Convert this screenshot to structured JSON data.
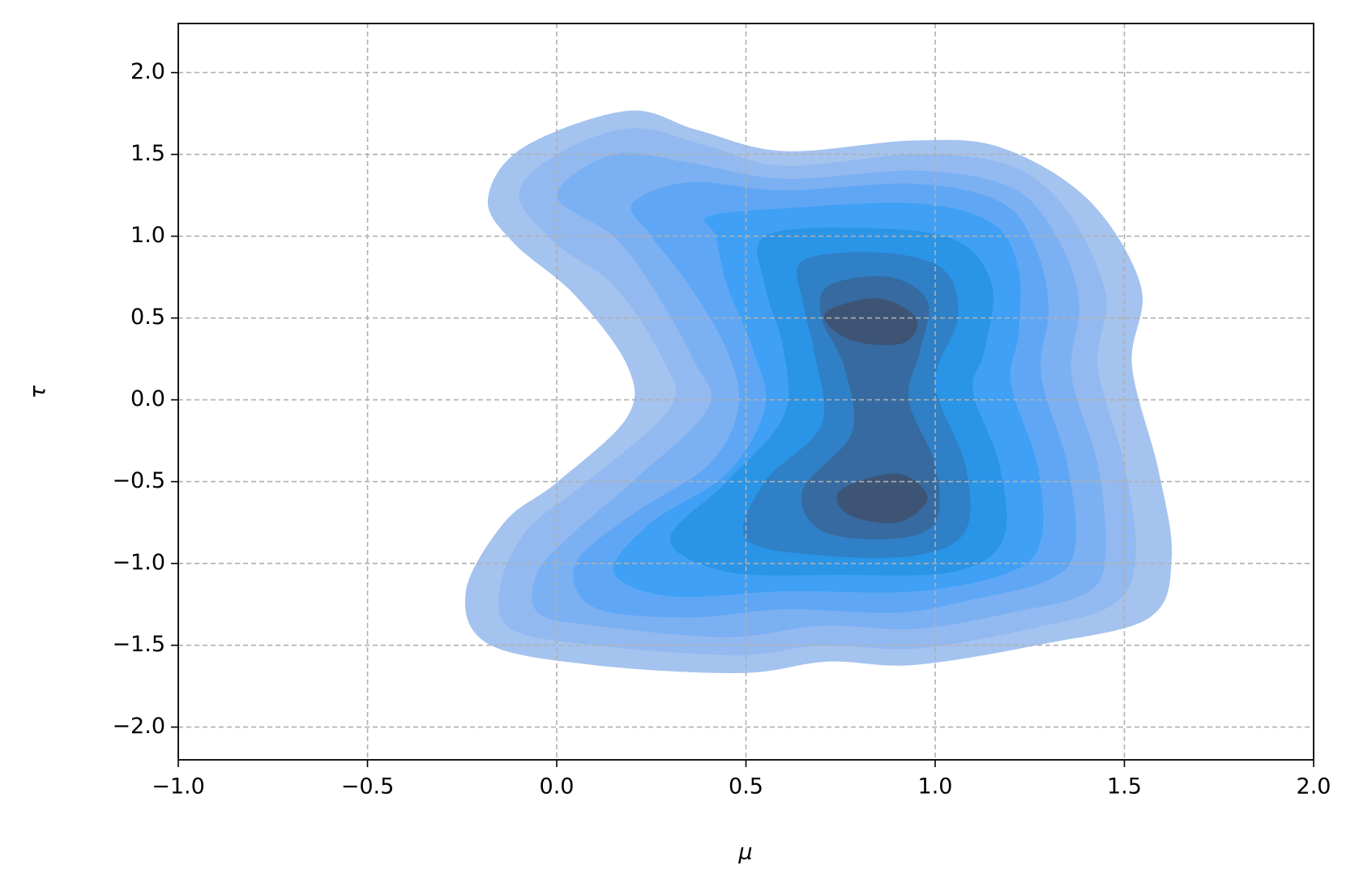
{
  "chart_data": {
    "type": "kde",
    "xlabel": "μ",
    "ylabel": "τ",
    "xlim": [
      -1,
      2
    ],
    "ylim": [
      -2.2,
      2.3
    ],
    "xticks": [
      {
        "value": -1,
        "label": "−1.0"
      },
      {
        "value": -0.5,
        "label": "−0.5"
      },
      {
        "value": 0,
        "label": "0.0"
      },
      {
        "value": 0.5,
        "label": "0.5"
      },
      {
        "value": 1,
        "label": "1.0"
      },
      {
        "value": 1.5,
        "label": "1.5"
      },
      {
        "value": 2,
        "label": "2.0"
      }
    ],
    "yticks": [
      {
        "value": -2,
        "label": "−2.0"
      },
      {
        "value": -1.5,
        "label": "−1.5"
      },
      {
        "value": -1,
        "label": "−1.0"
      },
      {
        "value": -0.5,
        "label": "−0.5"
      },
      {
        "value": 0,
        "label": "0.0"
      },
      {
        "value": 0.5,
        "label": "0.5"
      },
      {
        "value": 1,
        "label": "1.0"
      },
      {
        "value": 1.5,
        "label": "1.5"
      },
      {
        "value": 2,
        "label": "2.0"
      }
    ],
    "grid": true,
    "levels": [
      {
        "color": "#a4c3ef",
        "polygons": [
          {
            "x": [
              -0.182,
              -0.09,
              0.186,
              0.37,
              0.6,
              0.946,
              1.176,
              1.406,
              1.544,
              1.52,
              1.59,
              1.625,
              1.567,
              1.29,
              0.946,
              0.715,
              0.485,
              0.094,
              -0.182,
              -0.24,
              -0.137,
              0.0,
              0.186,
              0.186,
              0.048,
              -0.113
            ],
            "y": [
              1.223,
              1.54,
              1.766,
              1.65,
              1.52,
              1.585,
              1.54,
              1.22,
              0.69,
              0.21,
              -0.43,
              -0.96,
              -1.33,
              -1.49,
              -1.62,
              -1.6,
              -1.67,
              -1.62,
              -1.49,
              -1.17,
              -0.745,
              -0.505,
              -0.106,
              0.21,
              0.64,
              0.957
            ]
          }
        ]
      },
      {
        "color": "#92b9f0",
        "polygons": [
          {
            "x": [
              -0.1,
              0.0,
              0.2,
              0.4,
              0.6,
              0.95,
              1.2,
              1.35,
              1.45,
              1.43,
              1.5,
              1.53,
              1.47,
              1.25,
              0.95,
              0.7,
              0.48,
              0.1,
              -0.12,
              -0.15,
              -0.08,
              0.08,
              0.3,
              0.28,
              0.15,
              0.0
            ],
            "y": [
              1.25,
              1.5,
              1.66,
              1.55,
              1.43,
              1.5,
              1.43,
              1.15,
              0.65,
              0.2,
              -0.4,
              -0.95,
              -1.25,
              -1.4,
              -1.52,
              -1.5,
              -1.56,
              -1.5,
              -1.4,
              -1.15,
              -0.8,
              -0.5,
              -0.05,
              0.25,
              0.7,
              0.95
            ]
          }
        ]
      },
      {
        "color": "#7bb0f3",
        "polygons": [
          {
            "x": [
              0.0,
              0.15,
              0.35,
              0.6,
              0.95,
              1.2,
              1.32,
              1.38,
              1.36,
              1.43,
              1.45,
              1.4,
              1.2,
              0.95,
              0.7,
              0.45,
              0.1,
              -0.05,
              -0.05,
              0.05,
              0.2,
              0.4,
              0.36,
              0.25,
              0.15
            ],
            "y": [
              1.25,
              1.5,
              1.45,
              1.35,
              1.4,
              1.3,
              1.0,
              0.6,
              0.15,
              -0.4,
              -0.95,
              -1.18,
              -1.3,
              -1.4,
              -1.38,
              -1.45,
              -1.38,
              -1.3,
              -1.05,
              -0.8,
              -0.5,
              -0.05,
              0.25,
              0.7,
              1.0
            ]
          }
        ]
      },
      {
        "color": "#5fa7f5",
        "polygons": [
          {
            "x": [
              0.2,
              0.35,
              0.6,
              0.95,
              1.18,
              1.27,
              1.3,
              1.28,
              1.35,
              1.37,
              1.3,
              1.1,
              0.9,
              0.6,
              0.35,
              0.1,
              0.05,
              0.2,
              0.4,
              0.48,
              0.45,
              0.35,
              0.25
            ],
            "y": [
              1.2,
              1.33,
              1.28,
              1.32,
              1.2,
              0.9,
              0.55,
              0.15,
              -0.4,
              -0.9,
              -1.1,
              -1.22,
              -1.3,
              -1.28,
              -1.33,
              -1.27,
              -1.0,
              -0.7,
              -0.4,
              -0.05,
              0.3,
              0.7,
              1.0
            ]
          }
        ]
      },
      {
        "color": "#3fa0f5",
        "polygons": [
          {
            "x": [
              0.4,
              0.6,
              0.95,
              1.15,
              1.22,
              1.22,
              1.2,
              1.27,
              1.28,
              1.2,
              0.95,
              0.6,
              0.3,
              0.15,
              0.25,
              0.45,
              0.55,
              0.52,
              0.45,
              0.42
            ],
            "y": [
              1.12,
              1.17,
              1.2,
              1.08,
              0.8,
              0.4,
              0.1,
              -0.4,
              -0.85,
              -1.05,
              -1.17,
              -1.17,
              -1.2,
              -1.05,
              -0.75,
              -0.45,
              -0.05,
              0.3,
              0.7,
              1.0
            ]
          }
        ]
      },
      {
        "color": "#2a94e6",
        "polygons": [
          {
            "x": [
              0.55,
              0.8,
              1.05,
              1.15,
              1.13,
              1.1,
              1.17,
              1.18,
              1.05,
              0.75,
              0.45,
              0.3,
              0.45,
              0.6,
              0.6,
              0.55
            ],
            "y": [
              1.0,
              1.05,
              0.98,
              0.7,
              0.3,
              0.05,
              -0.4,
              -0.85,
              -1.05,
              -1.07,
              -1.05,
              -0.85,
              -0.5,
              -0.1,
              0.3,
              0.7
            ]
          }
        ]
      },
      {
        "color": "#2f80c6",
        "polygons": [
          {
            "x": [
              0.65,
              0.85,
              1.02,
              1.06,
              1.0,
              1.08,
              1.08,
              0.95,
              0.7,
              0.5,
              0.55,
              0.7,
              0.68,
              0.65
            ],
            "y": [
              0.85,
              0.9,
              0.8,
              0.5,
              0.1,
              -0.4,
              -0.8,
              -0.95,
              -0.95,
              -0.85,
              -0.5,
              -0.15,
              0.3,
              0.6
            ]
          }
        ]
      },
      {
        "color": "#366aa0",
        "polygons": [
          {
            "x": [
              0.72,
              0.88,
              0.98,
              0.96,
              0.93,
              1.0,
              1.0,
              0.88,
              0.7,
              0.65,
              0.78,
              0.76,
              0.7
            ],
            "y": [
              0.7,
              0.75,
              0.6,
              0.3,
              0.0,
              -0.4,
              -0.75,
              -0.85,
              -0.8,
              -0.55,
              -0.2,
              0.2,
              0.5
            ]
          }
        ]
      },
      {
        "color": "#3e5475",
        "polygons": [
          {
            "x": [
              0.72,
              0.85,
              0.95,
              0.92,
              0.8,
              0.72
            ],
            "y": [
              0.55,
              0.62,
              0.5,
              0.35,
              0.35,
              0.45
            ]
          },
          {
            "x": [
              0.75,
              0.9,
              0.98,
              0.9,
              0.77
            ],
            "y": [
              -0.55,
              -0.45,
              -0.6,
              -0.75,
              -0.7
            ]
          }
        ]
      }
    ]
  }
}
